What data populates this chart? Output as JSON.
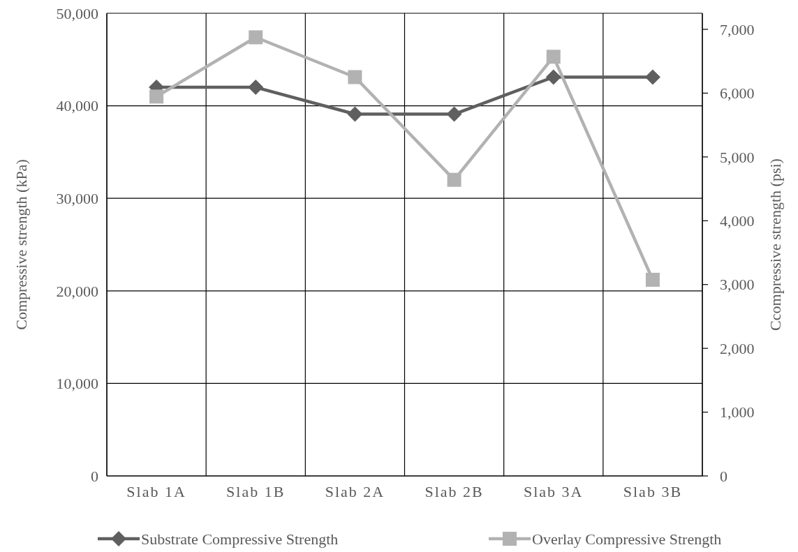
{
  "chart_data": {
    "type": "line",
    "categories": [
      "Slab 1A",
      "Slab 1B",
      "Slab 2A",
      "Slab 2B",
      "Slab 3A",
      "Slab 3B"
    ],
    "ylabel": "Compressive strength (kPa)",
    "y2label": "Ccompressive strength (psi)",
    "ylim": [
      0,
      50000
    ],
    "yticks": [
      {
        "value": 0,
        "label": "0"
      },
      {
        "value": 10000,
        "label": "10,000"
      },
      {
        "value": 20000,
        "label": "20,000"
      },
      {
        "value": 30000,
        "label": "30,000"
      },
      {
        "value": 40000,
        "label": "40,000"
      },
      {
        "value": 50000,
        "label": "50,000"
      }
    ],
    "y2lim": [
      0,
      7252
    ],
    "y2ticks": [
      {
        "value": 0,
        "label": "0"
      },
      {
        "value": 1000,
        "label": "1,000"
      },
      {
        "value": 2000,
        "label": "2,000"
      },
      {
        "value": 3000,
        "label": "3,000"
      },
      {
        "value": 4000,
        "label": "4,000"
      },
      {
        "value": 5000,
        "label": "5,000"
      },
      {
        "value": 6000,
        "label": "6,000"
      },
      {
        "value": 7000,
        "label": "7,000"
      }
    ],
    "grid": true,
    "legend": "bottom",
    "series": [
      {
        "name": "Substrate Compressive Strength",
        "color": "#5f5f5f",
        "marker": "diamond",
        "values": [
          42000,
          42000,
          39100,
          39100,
          43100,
          43100
        ]
      },
      {
        "name": "Overlay Compressive Strength",
        "color": "#b2b2b2",
        "marker": "square",
        "values": [
          41000,
          47400,
          43100,
          32000,
          45300,
          21200
        ]
      }
    ]
  }
}
